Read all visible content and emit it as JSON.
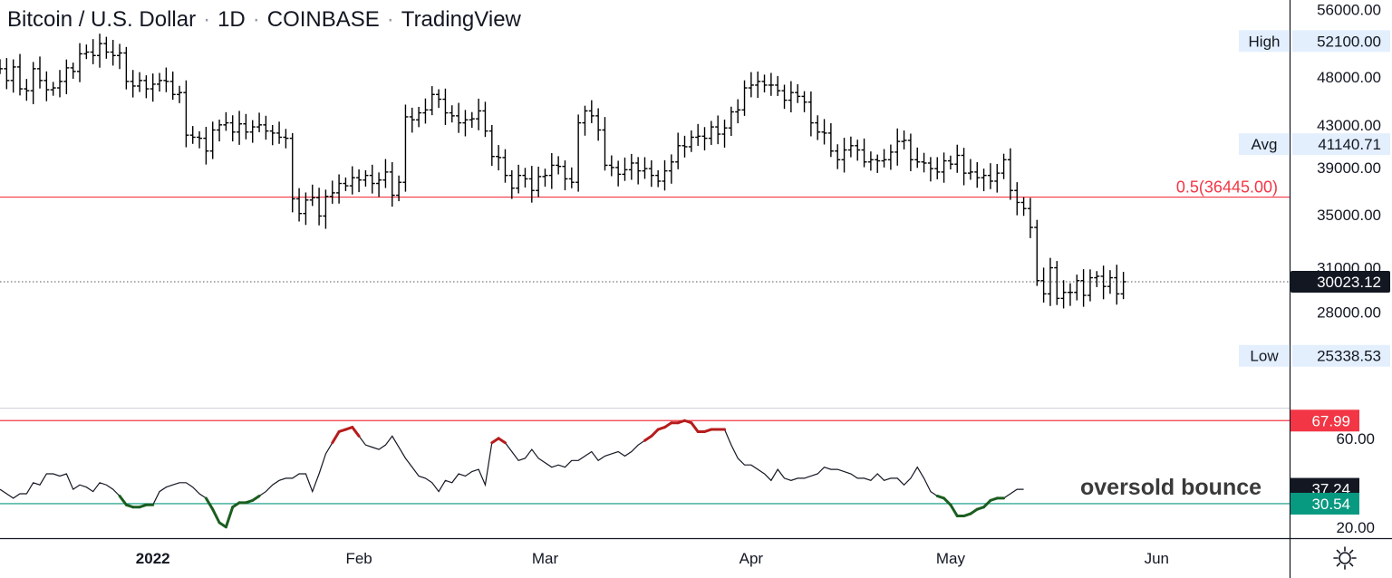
{
  "header": {
    "symbol": "Bitcoin / U.S. Dollar",
    "interval": "1D",
    "exchange": "COINBASE",
    "source": "TradingView"
  },
  "annotation": "oversold bounce",
  "settings_icon": "gear-icon",
  "chart_data": [
    {
      "type": "ohlc",
      "series": [
        {
          "name": "",
          "color": "#000000"
        }
      ],
      "y_scale": "log",
      "ylim": [
        22500,
        57000
      ],
      "yticks": [
        {
          "value": 56000,
          "label": "56000.00"
        },
        {
          "value": 48000,
          "label": "48000.00"
        },
        {
          "value": 43000,
          "label": "43000.00"
        },
        {
          "value": 39000,
          "label": "39000.00"
        },
        {
          "value": 35000,
          "label": "35000.00"
        },
        {
          "value": 31000,
          "label": "31000.00"
        },
        {
          "value": 28000,
          "label": "28000.00"
        }
      ],
      "x_range": [
        "2021-12-09",
        "2022-06-21"
      ],
      "xticks": [
        {
          "date": "2022-01-01",
          "label": "2022",
          "bold": true
        },
        {
          "date": "2022-02-01",
          "label": "Feb"
        },
        {
          "date": "2022-03-01",
          "label": "Mar"
        },
        {
          "date": "2022-04-01",
          "label": "Apr"
        },
        {
          "date": "2022-05-01",
          "label": "May"
        },
        {
          "date": "2022-06-01",
          "label": "Jun"
        }
      ],
      "start_date": "2021-12-09",
      "close": [
        48900,
        47600,
        49100,
        46700,
        46500,
        48900,
        47600,
        46600,
        46800,
        47500,
        49000,
        48600,
        50600,
        50800,
        50400,
        51800,
        50800,
        50400,
        50700,
        47500,
        47000,
        47600,
        46700,
        47200,
        47600,
        47500,
        46100,
        46300,
        42000,
        41800,
        41700,
        40500,
        42500,
        43000,
        43200,
        42300,
        43100,
        42300,
        42800,
        43000,
        42400,
        42200,
        41800,
        41700,
        36300,
        35100,
        36200,
        36400,
        34900,
        36500,
        36800,
        37600,
        37400,
        38100,
        37900,
        38300,
        37600,
        37900,
        38600,
        36600,
        37700,
        43800,
        43500,
        44200,
        44500,
        46100,
        45600,
        44200,
        43900,
        43200,
        43500,
        43600,
        44400,
        42400,
        40000,
        39900,
        38300,
        37200,
        38300,
        38000,
        37000,
        38200,
        38300,
        39200,
        39100,
        38000,
        37700,
        43200,
        44400,
        43900,
        42500,
        39200,
        39000,
        38400,
        38800,
        39400,
        38700,
        38900,
        38300,
        37800,
        38700,
        39500,
        41000,
        40900,
        41800,
        41900,
        41700,
        42800,
        42100,
        42700,
        44300,
        44500,
        46800,
        47100,
        47500,
        47100,
        47100,
        46500,
        45500,
        46300,
        45900,
        45300,
        43200,
        42300,
        42200,
        40500,
        39700,
        40600,
        41000,
        40600,
        39500,
        39700,
        39600,
        39700,
        40400,
        41400,
        41500,
        39700,
        39500,
        39400,
        38900,
        38600,
        39600,
        39300,
        40100,
        38500,
        38600,
        38100,
        38300,
        37800,
        38500,
        39700,
        37000,
        36000,
        35500,
        34000,
        30100,
        29200,
        31000,
        28900,
        29300,
        29300,
        30100,
        29100,
        30300,
        30400,
        29700,
        30300,
        29200,
        30023
      ],
      "high_label": "High",
      "high_value": 52100,
      "high_value_label": "52100.00",
      "avg_label": "Avg",
      "avg_value": 41140.71,
      "avg_value_label": "41140.71",
      "low_label": "Low",
      "low_value": 25338.53,
      "low_value_label": "25338.53",
      "fib_label": "0.5(36445.00)",
      "fib_value": 36445,
      "last_value": 30023.12,
      "last_value_label": "30023.12",
      "colors": {
        "fib_line": "#f23645",
        "last_badge": "#131722",
        "stat_badge": "#e3effd",
        "bars": "#000000"
      }
    },
    {
      "type": "line",
      "ylim": [
        15,
        73
      ],
      "yticks": [
        {
          "value": 60,
          "label": "60.00"
        },
        {
          "value": 20,
          "label": "20.00"
        }
      ],
      "upper_line": 67.99,
      "upper_label": "67.99",
      "lower_line": 30.54,
      "lower_label": "30.54",
      "current": 37.24,
      "current_label": "37.24",
      "values": [
        37,
        35,
        33,
        35,
        35,
        40,
        39,
        44,
        44,
        43,
        44,
        37,
        39,
        38,
        36,
        40,
        39,
        37,
        34,
        30,
        29,
        29,
        30,
        30,
        36,
        38,
        39,
        40,
        40,
        38,
        35,
        33,
        28,
        22,
        20,
        29,
        31,
        31,
        32,
        34,
        36,
        39,
        41,
        42,
        42,
        44,
        44,
        36,
        44,
        53,
        58,
        63,
        64,
        65,
        61,
        57,
        56,
        55,
        57,
        61,
        56,
        51,
        47,
        43,
        42,
        40,
        36,
        41,
        40,
        44,
        43,
        45,
        46,
        39,
        58,
        60,
        58,
        54,
        50,
        51,
        55,
        51,
        49,
        47,
        48,
        47,
        50,
        50,
        52,
        54,
        50,
        52,
        53,
        54,
        52,
        54,
        57,
        59,
        61,
        64,
        65,
        67,
        67,
        68,
        67,
        63,
        63,
        64,
        64,
        64,
        57,
        51,
        48,
        48,
        46,
        44,
        41,
        46,
        42,
        41,
        42,
        42,
        43,
        44,
        47,
        46,
        46,
        45,
        44,
        42,
        42,
        41,
        44,
        41,
        42,
        42,
        39,
        42,
        47,
        42,
        36,
        34,
        33,
        30,
        25,
        25,
        26,
        28,
        29,
        32,
        33,
        33,
        35,
        37,
        37
      ],
      "colors": {
        "upper": "#f23645",
        "lower": "#089981",
        "line": "#131722",
        "overbought": "#b71c1c",
        "oversold": "#1b5e20"
      }
    }
  ]
}
